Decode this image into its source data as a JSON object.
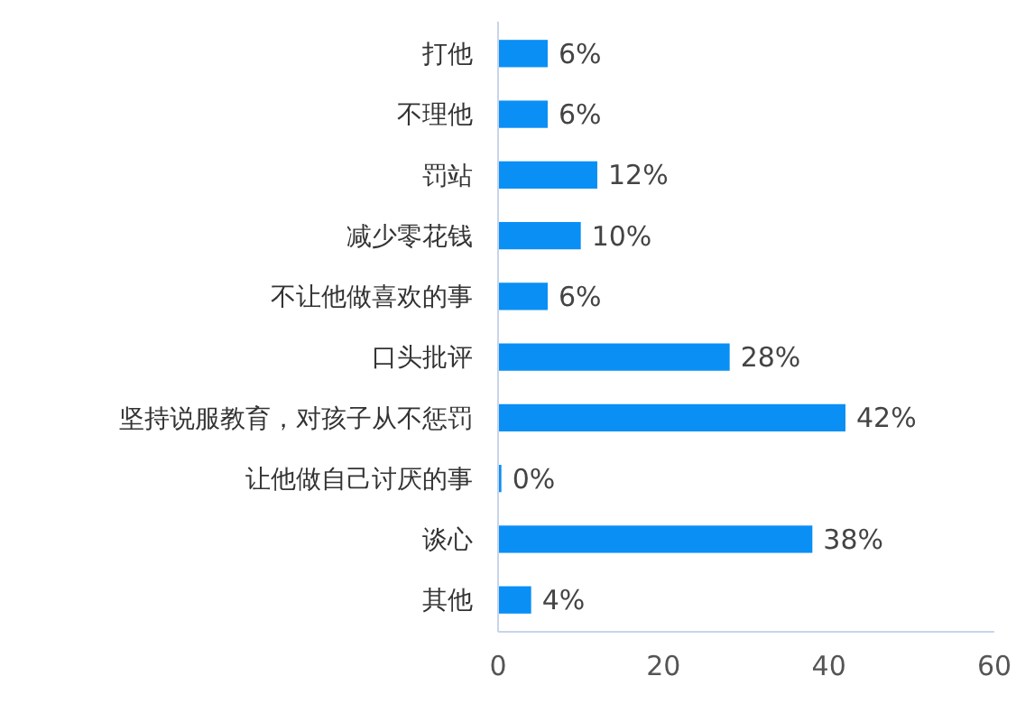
{
  "chart_data": {
    "type": "bar",
    "orientation": "horizontal",
    "categories": [
      "打他",
      "不理他",
      "罚站",
      "减少零花钱",
      "不让他做喜欢的事",
      "口头批评",
      "坚持说服教育，对孩子从不惩罚",
      "让他做自己讨厌的事",
      "谈心",
      "其他"
    ],
    "values": [
      6,
      6,
      12,
      10,
      6,
      28,
      42,
      0.4,
      38,
      4
    ],
    "value_labels": [
      "6%",
      "6%",
      "12%",
      "10%",
      "6%",
      "28%",
      "42%",
      "0%",
      "38%",
      "4%"
    ],
    "color": "#0a8ff5",
    "xlim": [
      0,
      60
    ],
    "xticks": [
      0,
      20,
      40,
      60
    ],
    "grid": false
  }
}
